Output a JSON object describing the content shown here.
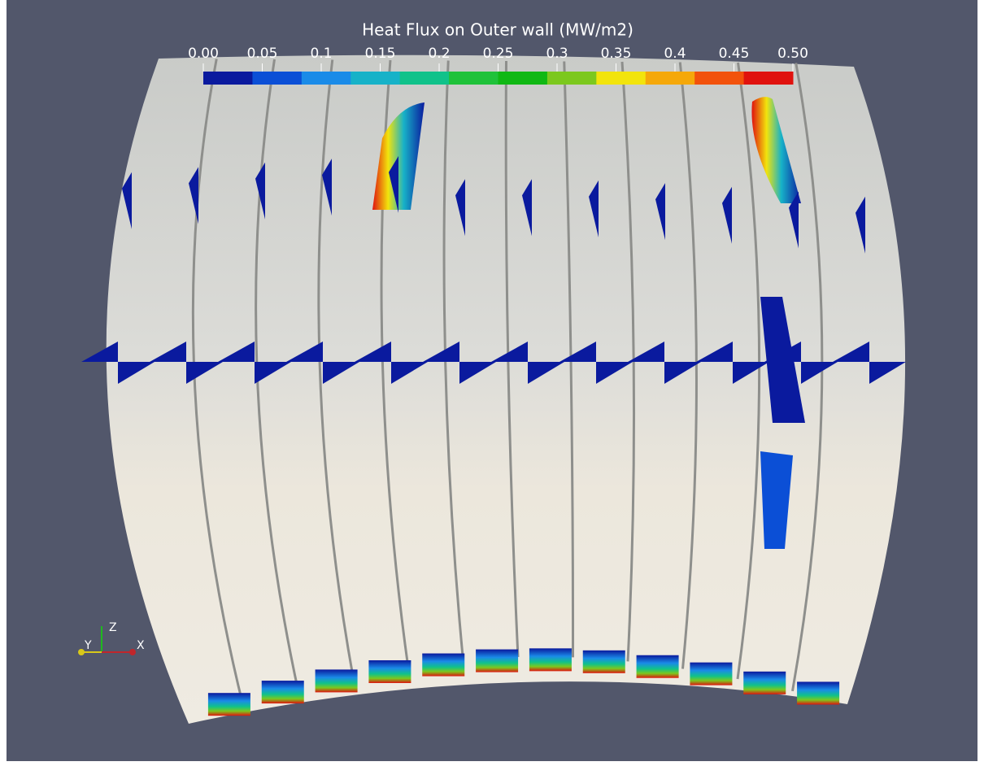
{
  "colorbar": {
    "title": "Heat Flux on Outer wall (MW/m2)",
    "range": [
      0,
      0.5
    ],
    "ticks": [
      {
        "value": 0,
        "label": "0.00"
      },
      0.05,
      0.1,
      0.15,
      0.2,
      0.25,
      0.3,
      0.35,
      0.4,
      0.45,
      {
        "value": 0.5,
        "label": "0.50"
      }
    ],
    "colors": [
      "#0a1a9e",
      "#0b4fd6",
      "#1a8be8",
      "#17b2c8",
      "#10c28a",
      "#1fc23a",
      "#10b814",
      "#7cc81e",
      "#f2e40c",
      "#f5a80a",
      "#f2520c",
      "#e0120e"
    ]
  },
  "axes_widget": {
    "z": "Z",
    "y": "Y",
    "x": "X"
  }
}
